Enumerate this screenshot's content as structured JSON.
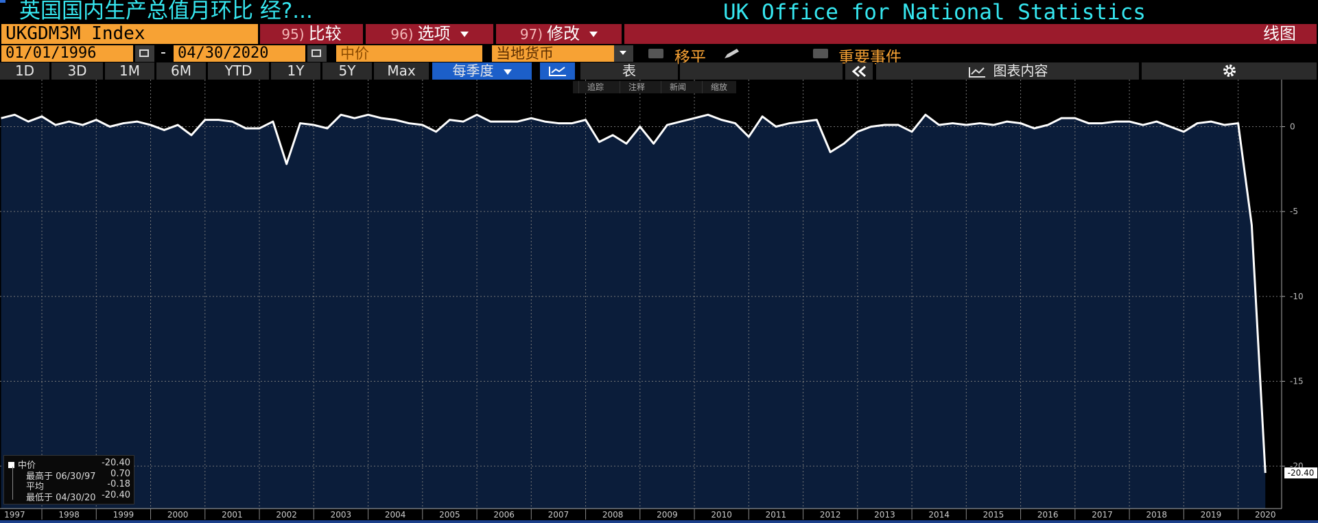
{
  "header": {
    "title": "英国国内生产总值月环比 经?...",
    "source": "UK Office for National Statistics"
  },
  "toolbar": {
    "ticker": "UKGDM3M Index",
    "menus": [
      {
        "key": "95)",
        "label": "比较"
      },
      {
        "key": "96)",
        "label": "选项"
      },
      {
        "key": "97)",
        "label": "修改"
      }
    ],
    "view": "线图"
  },
  "controls": {
    "start_date": "01/01/1996",
    "separator": "-",
    "end_date": "04/30/2020",
    "price": "中价",
    "currency": "当地货币",
    "smoothing": "移平",
    "events": "重要事件"
  },
  "periods": [
    "1D",
    "3D",
    "1M",
    "6M",
    "YTD",
    "1Y",
    "5Y",
    "Max"
  ],
  "frequency": "每季度",
  "table": "表",
  "chart_contents": "图表内容",
  "chart_tools": [
    "追踪",
    "注释",
    "新闻",
    "缩放"
  ],
  "legend": {
    "last": "-20.40",
    "rows": [
      {
        "label": "最高于 06/30/97",
        "value": "0.70"
      },
      {
        "label": "平均",
        "value": "-0.18"
      },
      {
        "label": "最低于 04/30/20",
        "value": "-20.40"
      }
    ]
  },
  "chart_data": {
    "type": "line",
    "x": [
      1997.25,
      1997.5,
      1997.75,
      1998,
      1998.25,
      1998.5,
      1998.75,
      1999,
      1999.25,
      1999.5,
      1999.75,
      2000,
      2000.25,
      2000.5,
      2000.75,
      2001,
      2001.25,
      2001.5,
      2001.75,
      2002,
      2002.25,
      2002.5,
      2002.75,
      2003,
      2003.25,
      2003.5,
      2003.75,
      2004,
      2004.25,
      2004.5,
      2004.75,
      2005,
      2005.25,
      2005.5,
      2005.75,
      2006,
      2006.25,
      2006.5,
      2006.75,
      2007,
      2007.25,
      2007.5,
      2007.75,
      2008,
      2008.25,
      2008.5,
      2008.75,
      2009,
      2009.25,
      2009.5,
      2009.75,
      2010,
      2010.25,
      2010.5,
      2010.75,
      2011,
      2011.25,
      2011.5,
      2011.75,
      2012,
      2012.25,
      2012.5,
      2012.75,
      2013,
      2013.25,
      2013.5,
      2013.75,
      2014,
      2014.25,
      2014.5,
      2014.75,
      2015,
      2015.25,
      2015.5,
      2015.75,
      2016,
      2016.25,
      2016.5,
      2016.75,
      2017,
      2017.25,
      2017.5,
      2017.75,
      2018,
      2018.25,
      2018.5,
      2018.75,
      2019,
      2019.25,
      2019.5,
      2019.75,
      2020,
      2020.25,
      2020.5
    ],
    "series": [
      {
        "name": "中价",
        "color": "#ffffff",
        "values": [
          0.5,
          0.7,
          0.3,
          0.6,
          0.1,
          0.3,
          0.1,
          0.4,
          0.0,
          0.2,
          0.3,
          0.1,
          -0.2,
          0.1,
          -0.5,
          0.4,
          0.4,
          0.3,
          -0.1,
          -0.1,
          0.3,
          -2.2,
          0.2,
          0.1,
          -0.1,
          0.7,
          0.5,
          0.7,
          0.5,
          0.4,
          0.2,
          0.1,
          -0.3,
          0.4,
          0.3,
          0.7,
          0.3,
          0.3,
          0.3,
          0.5,
          0.3,
          0.2,
          0.2,
          0.4,
          -0.9,
          -0.5,
          -1.0,
          0.0,
          -1.0,
          0.1,
          0.3,
          0.5,
          0.7,
          0.4,
          0.2,
          -0.6,
          0.6,
          0.0,
          0.2,
          0.3,
          0.4,
          -1.5,
          -1.0,
          -0.3,
          0.0,
          0.1,
          0.1,
          -0.3,
          0.7,
          0.1,
          0.2,
          0.1,
          0.2,
          0.1,
          0.3,
          0.2,
          -0.1,
          0.1,
          0.5,
          0.5,
          0.2,
          0.2,
          0.3,
          0.3,
          0.1,
          0.3,
          0.0,
          -0.3,
          0.2,
          0.3,
          0.1,
          0.2,
          -5.8,
          -20.4
        ],
        "value_labels": [
          null,
          null,
          null,
          null,
          null,
          null,
          null,
          null,
          null,
          null,
          null,
          null,
          null,
          null,
          null,
          null,
          null,
          null,
          null,
          null,
          null,
          null,
          null,
          null,
          null,
          null,
          null,
          null,
          null,
          null,
          null,
          null,
          null,
          null,
          null,
          null,
          null,
          null,
          null,
          null,
          null,
          null,
          null,
          null,
          null,
          null,
          null,
          null,
          null,
          null,
          null,
          null,
          null,
          null,
          null,
          null,
          null,
          null,
          null,
          null,
          null,
          null,
          null,
          null,
          null,
          null,
          null,
          null,
          null,
          null,
          null,
          null,
          null,
          null,
          null,
          null,
          null,
          null,
          null,
          null,
          null,
          null,
          null,
          null,
          null,
          null,
          null,
          null,
          null,
          null,
          null,
          null,
          null,
          "-20.40"
        ]
      }
    ],
    "xlim": [
      1997.23,
      2020.8
    ],
    "ylim": [
      -22.5,
      2.77
    ],
    "xticks": [
      1997,
      1998,
      1999,
      2000,
      2001,
      2002,
      2003,
      2004,
      2005,
      2006,
      2007,
      2008,
      2009,
      2010,
      2011,
      2012,
      2013,
      2014,
      2015,
      2016,
      2017,
      2018,
      2019,
      2020
    ],
    "yticks": [
      0,
      -5,
      -10,
      -15,
      -20
    ],
    "grid": true,
    "fill_color": "#0b1d3a"
  }
}
